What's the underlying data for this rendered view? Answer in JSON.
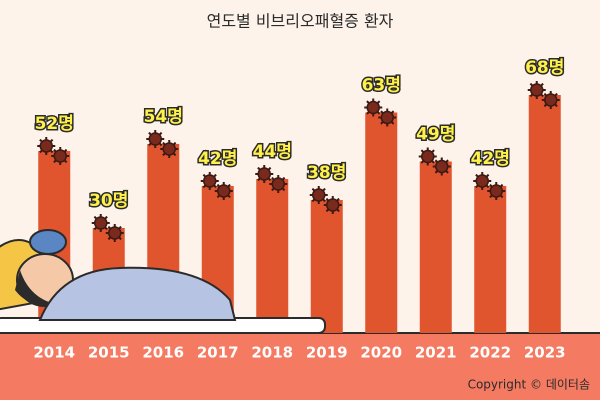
{
  "chart_data": {
    "type": "bar",
    "title": "연도별 비브리오패혈증 환자",
    "categories": [
      "2014",
      "2015",
      "2016",
      "2017",
      "2018",
      "2019",
      "2020",
      "2021",
      "2022",
      "2023"
    ],
    "values": [
      52,
      30,
      54,
      42,
      44,
      38,
      63,
      49,
      42,
      68
    ],
    "value_labels": [
      "52명",
      "30명",
      "54명",
      "42명",
      "44명",
      "38명",
      "63명",
      "49명",
      "42명",
      "68명"
    ],
    "color": "#e0542e",
    "copyright": "Copyright © 데이터솜"
  }
}
